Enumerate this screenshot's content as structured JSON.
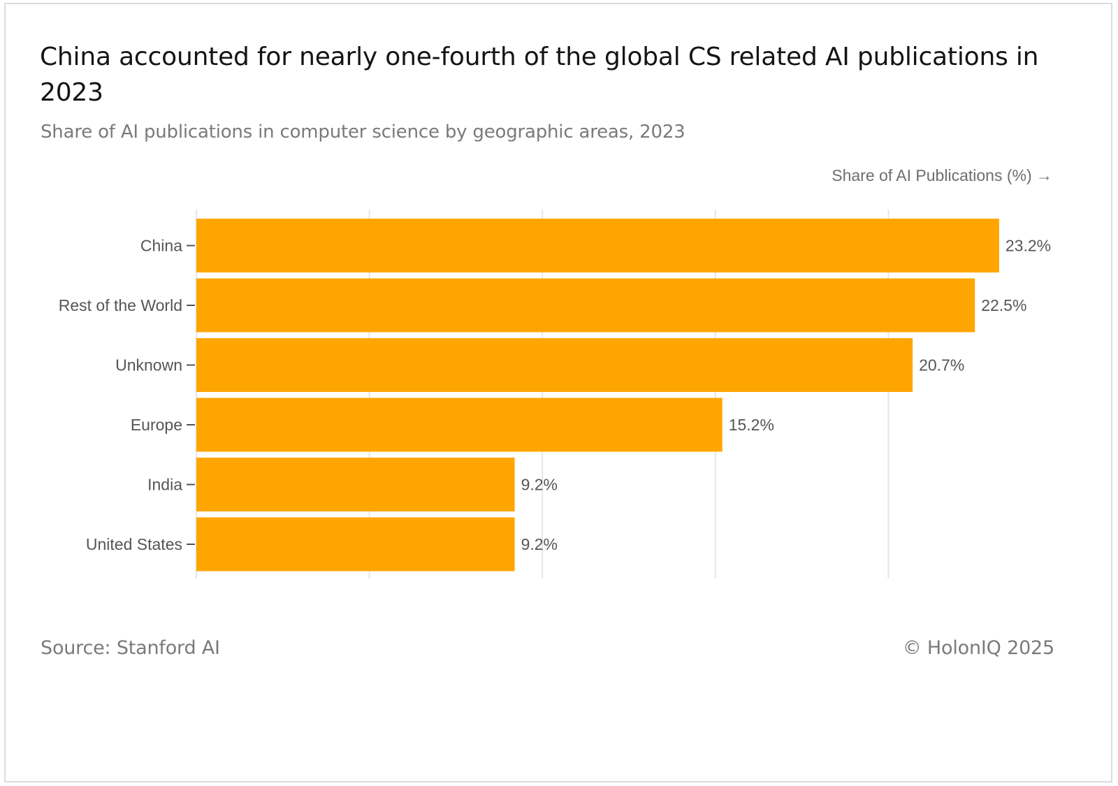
{
  "title": "China accounted for nearly one-fourth of the global CS related AI publications in 2023",
  "subtitle": "Share of AI publications in computer science by geographic areas, 2023",
  "source": "Source: Stanford AI",
  "copyright": "© HolonIQ 2025",
  "colors": {
    "bar": "#FFA500",
    "grid": "#e6e6e6"
  },
  "chart_data": {
    "type": "bar",
    "orientation": "horizontal",
    "title": "China accounted for nearly one-fourth of the global CS related AI publications in 2023",
    "subtitle": "Share of AI publications in computer science by geographic areas, 2023",
    "xlabel": "Share of AI Publications (%) →",
    "ylabel": "",
    "categories": [
      "China",
      "Rest of the World",
      "Unknown",
      "Europe",
      "India",
      "United States"
    ],
    "values": [
      23.2,
      22.5,
      20.7,
      15.2,
      9.2,
      9.2
    ],
    "value_labels": [
      "23.2%",
      "22.5%",
      "20.7%",
      "15.2%",
      "9.2%",
      "9.2%"
    ],
    "xlim": [
      0,
      25
    ],
    "gridlines_at": [
      0,
      5,
      10,
      15,
      20
    ],
    "grid": true,
    "legend": "none"
  }
}
